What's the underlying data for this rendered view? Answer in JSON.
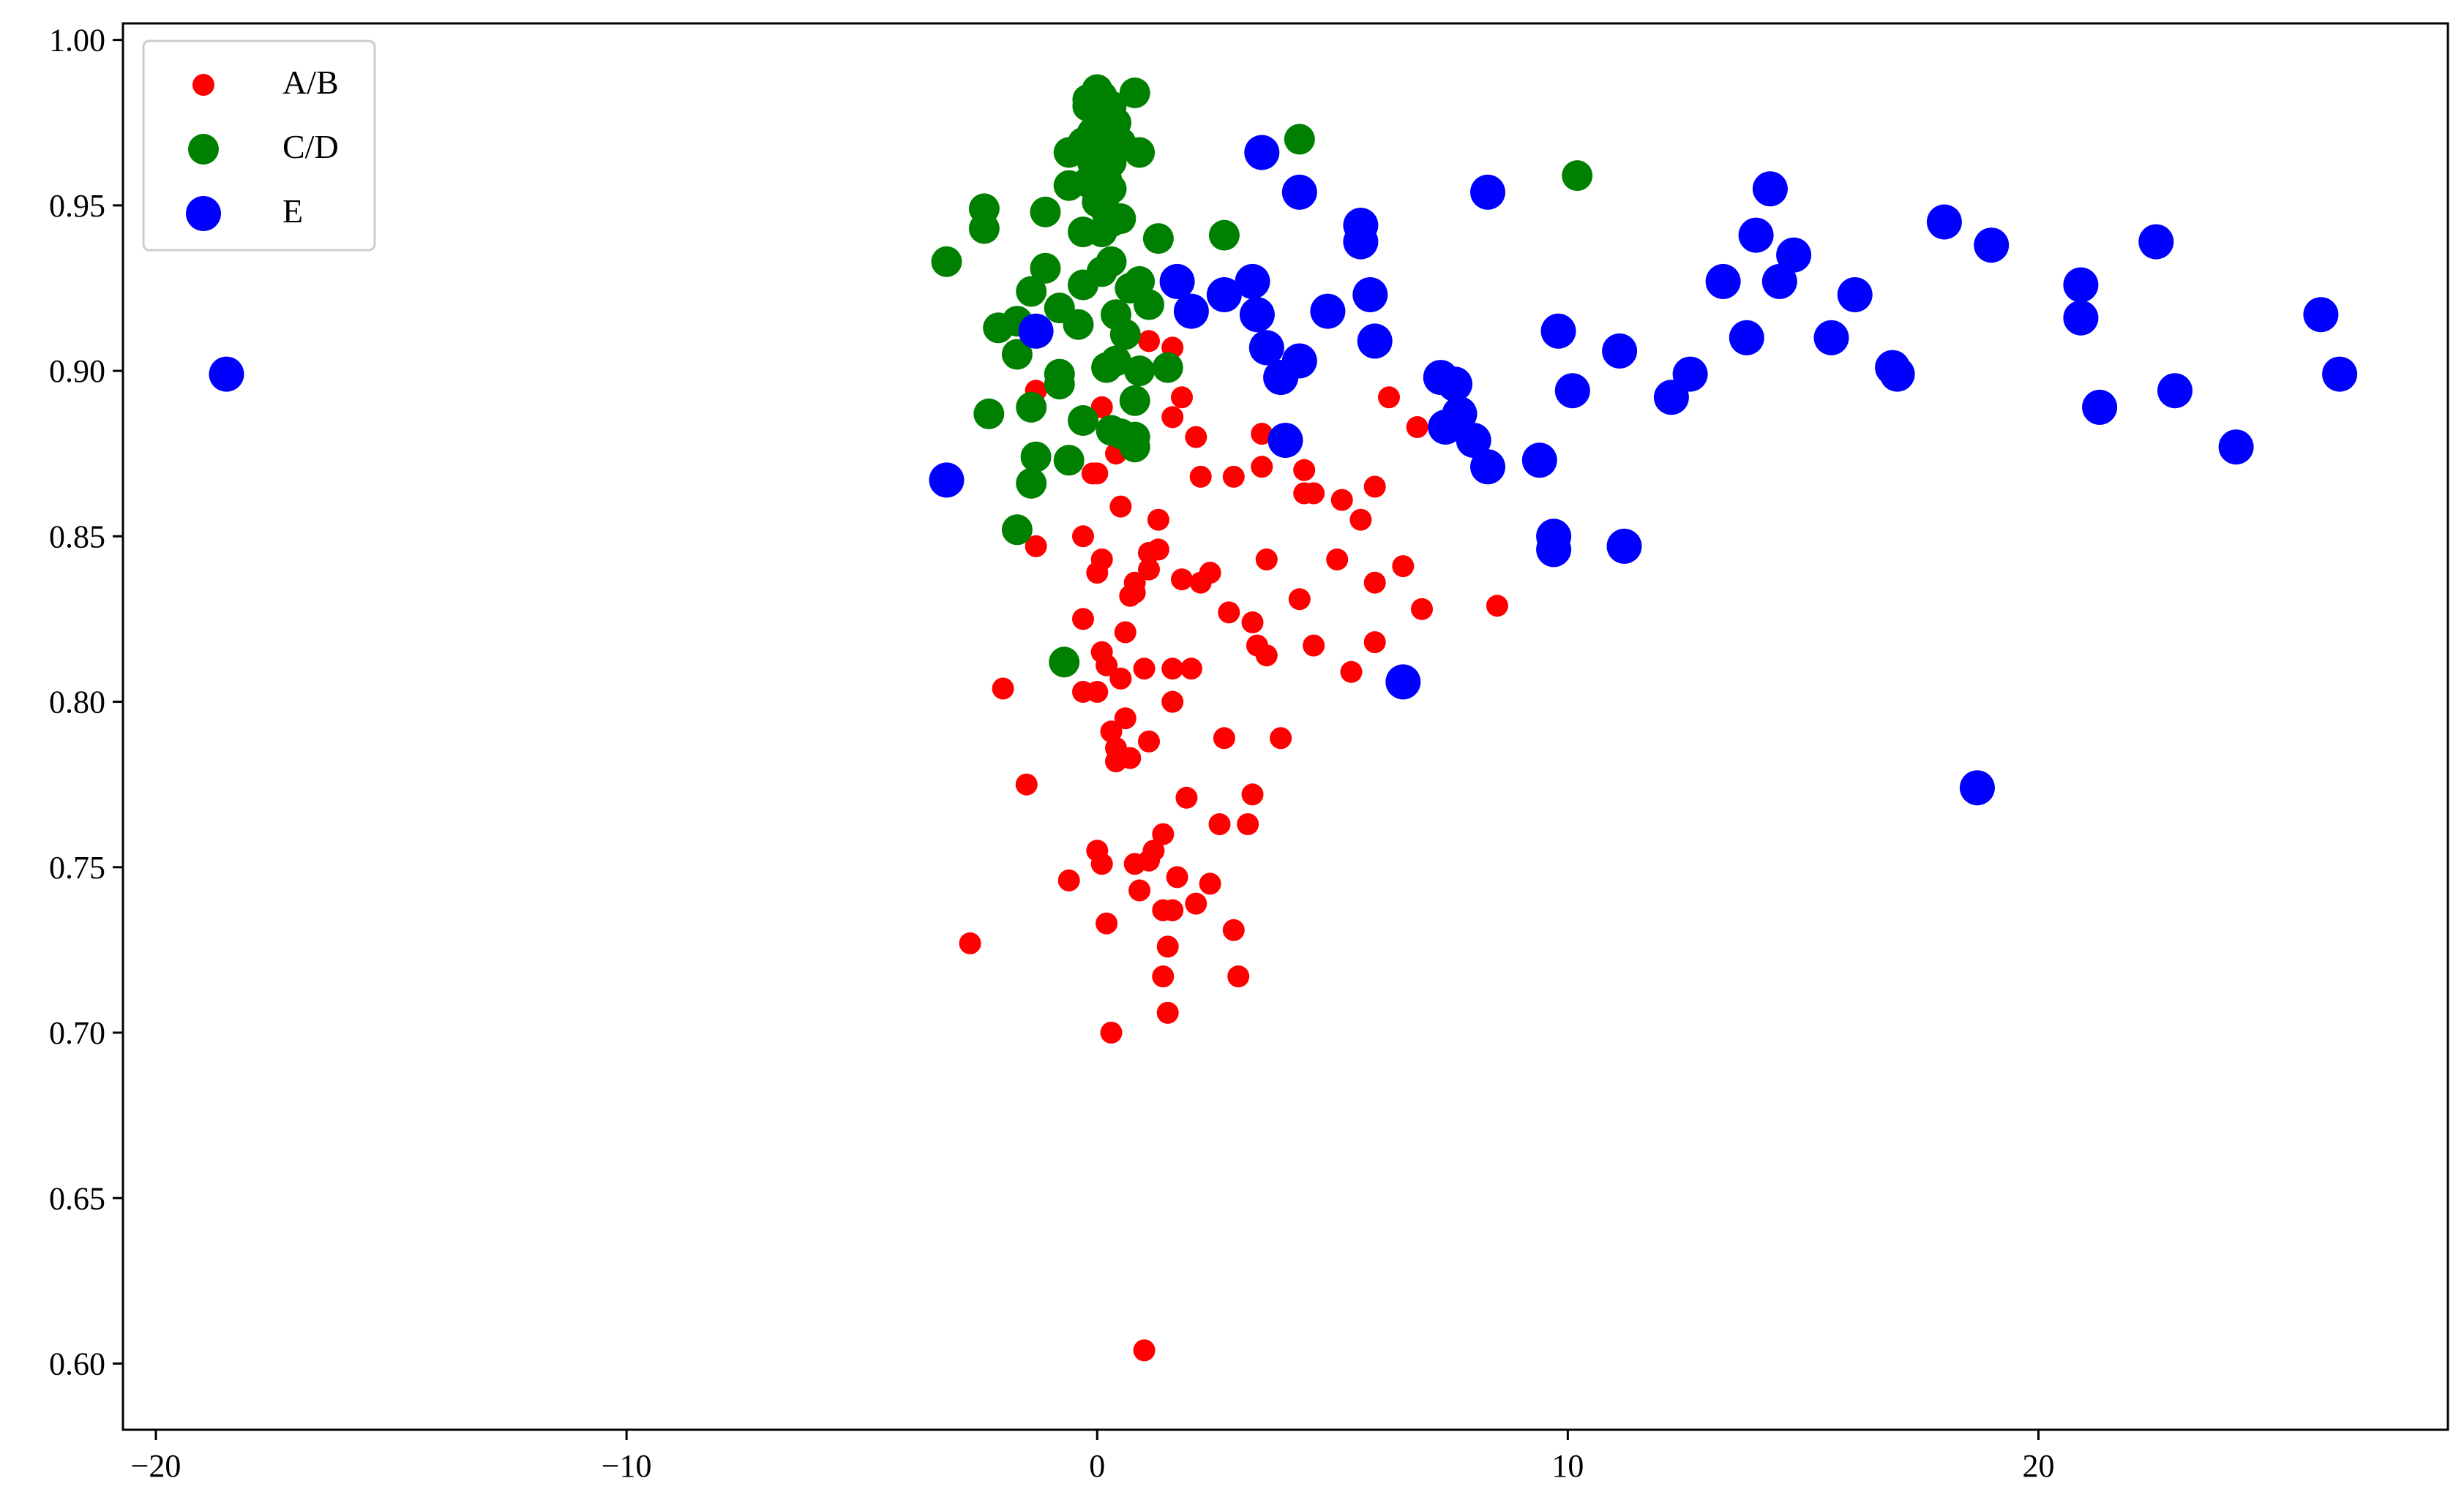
{
  "chart_data": {
    "type": "scatter",
    "title": "",
    "xlabel": "",
    "ylabel": "",
    "xlim": [
      -20.7,
      28.7
    ],
    "ylim": [
      0.58,
      1.005
    ],
    "xticks": [
      -20,
      -10,
      0,
      10,
      20
    ],
    "xtick_labels": [
      "−20",
      "−10",
      "0",
      "10",
      "20"
    ],
    "yticks": [
      0.6,
      0.65,
      0.7,
      0.75,
      0.8,
      0.85,
      0.9,
      0.95,
      1.0
    ],
    "ytick_labels": [
      "0.60",
      "0.65",
      "0.70",
      "0.75",
      "0.80",
      "0.85",
      "0.90",
      "0.95",
      "1.00"
    ],
    "grid": false,
    "legend_position": "upper-left",
    "series": [
      {
        "name": "A/B",
        "color": "#ff0000",
        "marker_size": "small",
        "points": [
          [
            1.0,
            0.604
          ],
          [
            0.3,
            0.7
          ],
          [
            1.5,
            0.706
          ],
          [
            1.4,
            0.717
          ],
          [
            3.0,
            0.717
          ],
          [
            1.5,
            0.726
          ],
          [
            -2.7,
            0.727
          ],
          [
            2.9,
            0.731
          ],
          [
            0.2,
            0.733
          ],
          [
            1.4,
            0.737
          ],
          [
            1.6,
            0.737
          ],
          [
            2.1,
            0.739
          ],
          [
            0.9,
            0.743
          ],
          [
            2.4,
            0.745
          ],
          [
            -0.6,
            0.746
          ],
          [
            1.7,
            0.747
          ],
          [
            0.1,
            0.751
          ],
          [
            0.8,
            0.751
          ],
          [
            1.1,
            0.752
          ],
          [
            1.2,
            0.755
          ],
          [
            0.0,
            0.755
          ],
          [
            1.4,
            0.76
          ],
          [
            2.6,
            0.763
          ],
          [
            3.2,
            0.763
          ],
          [
            1.9,
            0.771
          ],
          [
            3.3,
            0.772
          ],
          [
            -1.5,
            0.775
          ],
          [
            0.4,
            0.782
          ],
          [
            0.7,
            0.783
          ],
          [
            0.4,
            0.786
          ],
          [
            1.1,
            0.788
          ],
          [
            2.7,
            0.789
          ],
          [
            3.9,
            0.789
          ],
          [
            0.3,
            0.791
          ],
          [
            0.6,
            0.795
          ],
          [
            -0.3,
            0.803
          ],
          [
            0.0,
            0.803
          ],
          [
            1.6,
            0.8
          ],
          [
            -2.0,
            0.804
          ],
          [
            0.5,
            0.807
          ],
          [
            1.0,
            0.81
          ],
          [
            1.6,
            0.81
          ],
          [
            2.0,
            0.81
          ],
          [
            5.4,
            0.809
          ],
          [
            0.2,
            0.811
          ],
          [
            0.1,
            0.815
          ],
          [
            3.6,
            0.814
          ],
          [
            3.4,
            0.817
          ],
          [
            4.6,
            0.817
          ],
          [
            5.9,
            0.818
          ],
          [
            0.6,
            0.821
          ],
          [
            -0.3,
            0.825
          ],
          [
            3.3,
            0.824
          ],
          [
            2.8,
            0.827
          ],
          [
            6.9,
            0.828
          ],
          [
            8.5,
            0.829
          ],
          [
            4.3,
            0.831
          ],
          [
            0.7,
            0.832
          ],
          [
            0.8,
            0.833
          ],
          [
            0.8,
            0.836
          ],
          [
            1.8,
            0.837
          ],
          [
            2.2,
            0.836
          ],
          [
            5.9,
            0.836
          ],
          [
            2.4,
            0.839
          ],
          [
            0.0,
            0.839
          ],
          [
            1.1,
            0.84
          ],
          [
            6.5,
            0.841
          ],
          [
            0.1,
            0.843
          ],
          [
            3.6,
            0.843
          ],
          [
            5.1,
            0.843
          ],
          [
            1.1,
            0.845
          ],
          [
            1.3,
            0.846
          ],
          [
            -1.3,
            0.847
          ],
          [
            -0.3,
            0.85
          ],
          [
            1.3,
            0.855
          ],
          [
            5.6,
            0.855
          ],
          [
            0.5,
            0.859
          ],
          [
            5.2,
            0.861
          ],
          [
            4.6,
            0.863
          ],
          [
            4.4,
            0.863
          ],
          [
            5.9,
            0.865
          ],
          [
            2.2,
            0.868
          ],
          [
            2.9,
            0.868
          ],
          [
            -0.1,
            0.869
          ],
          [
            0.0,
            0.869
          ],
          [
            3.5,
            0.871
          ],
          [
            4.4,
            0.87
          ],
          [
            0.4,
            0.875
          ],
          [
            6.2,
            0.892
          ],
          [
            3.5,
            0.881
          ],
          [
            4.0,
            0.881
          ],
          [
            6.8,
            0.883
          ],
          [
            2.1,
            0.88
          ],
          [
            1.6,
            0.886
          ],
          [
            1.8,
            0.892
          ],
          [
            0.1,
            0.889
          ],
          [
            1.1,
            0.909
          ],
          [
            1.6,
            0.907
          ],
          [
            -1.3,
            0.894
          ]
        ]
      },
      {
        "name": "C/D",
        "color": "#008000",
        "marker_size": "medium",
        "points": [
          [
            -0.7,
            0.812
          ],
          [
            -1.7,
            0.852
          ],
          [
            -1.4,
            0.866
          ],
          [
            -1.3,
            0.874
          ],
          [
            -0.6,
            0.873
          ],
          [
            0.8,
            0.877
          ],
          [
            0.8,
            0.88
          ],
          [
            0.5,
            0.881
          ],
          [
            0.3,
            0.882
          ],
          [
            -0.3,
            0.885
          ],
          [
            -2.3,
            0.887
          ],
          [
            -1.4,
            0.889
          ],
          [
            0.8,
            0.891
          ],
          [
            -0.8,
            0.896
          ],
          [
            -0.8,
            0.899
          ],
          [
            0.9,
            0.9
          ],
          [
            1.5,
            0.901
          ],
          [
            0.4,
            0.903
          ],
          [
            0.2,
            0.901
          ],
          [
            -1.7,
            0.905
          ],
          [
            -0.4,
            0.914
          ],
          [
            -2.1,
            0.913
          ],
          [
            -1.7,
            0.915
          ],
          [
            0.6,
            0.911
          ],
          [
            0.4,
            0.917
          ],
          [
            -0.8,
            0.919
          ],
          [
            1.1,
            0.92
          ],
          [
            -0.3,
            0.926
          ],
          [
            0.7,
            0.925
          ],
          [
            0.9,
            0.927
          ],
          [
            -1.4,
            0.924
          ],
          [
            -1.1,
            0.931
          ],
          [
            0.1,
            0.93
          ],
          [
            0.3,
            0.933
          ],
          [
            -3.2,
            0.933
          ],
          [
            2.7,
            0.941
          ],
          [
            1.3,
            0.94
          ],
          [
            -0.3,
            0.942
          ],
          [
            -2.4,
            0.943
          ],
          [
            0.1,
            0.942
          ],
          [
            0.3,
            0.945
          ],
          [
            0.5,
            0.946
          ],
          [
            -2.4,
            0.949
          ],
          [
            -1.1,
            0.948
          ],
          [
            0.2,
            0.948
          ],
          [
            0.0,
            0.951
          ],
          [
            -0.6,
            0.956
          ],
          [
            0.3,
            0.955
          ],
          [
            -0.2,
            0.957
          ],
          [
            0.2,
            0.958
          ],
          [
            10.2,
            0.959
          ],
          [
            -0.1,
            0.963
          ],
          [
            0.3,
            0.963
          ],
          [
            -0.6,
            0.966
          ],
          [
            0.9,
            0.966
          ],
          [
            0.1,
            0.968
          ],
          [
            -0.3,
            0.969
          ],
          [
            0.5,
            0.969
          ],
          [
            4.3,
            0.97
          ],
          [
            -0.1,
            0.972
          ],
          [
            0.2,
            0.973
          ],
          [
            0.4,
            0.975
          ],
          [
            0.0,
            0.977
          ],
          [
            -0.2,
            0.98
          ],
          [
            0.3,
            0.98
          ],
          [
            -0.2,
            0.982
          ],
          [
            0.1,
            0.983
          ],
          [
            0.8,
            0.984
          ],
          [
            0.0,
            0.985
          ]
        ]
      },
      {
        "name": "E",
        "color": "#0000ff",
        "marker_size": "large",
        "points": [
          [
            -18.5,
            0.899
          ],
          [
            -3.2,
            0.867
          ],
          [
            -1.3,
            0.912
          ],
          [
            3.5,
            0.966
          ],
          [
            4.3,
            0.954
          ],
          [
            8.3,
            0.954
          ],
          [
            14.3,
            0.955
          ],
          [
            5.6,
            0.944
          ],
          [
            18.0,
            0.945
          ],
          [
            5.6,
            0.939
          ],
          [
            14.0,
            0.941
          ],
          [
            19.0,
            0.938
          ],
          [
            22.5,
            0.939
          ],
          [
            14.8,
            0.935
          ],
          [
            1.7,
            0.927
          ],
          [
            3.3,
            0.927
          ],
          [
            2.7,
            0.923
          ],
          [
            5.8,
            0.923
          ],
          [
            13.3,
            0.927
          ],
          [
            14.5,
            0.927
          ],
          [
            16.1,
            0.923
          ],
          [
            20.9,
            0.926
          ],
          [
            2.0,
            0.918
          ],
          [
            3.4,
            0.917
          ],
          [
            4.9,
            0.918
          ],
          [
            20.9,
            0.916
          ],
          [
            26.0,
            0.917
          ],
          [
            9.8,
            0.912
          ],
          [
            13.8,
            0.91
          ],
          [
            15.6,
            0.91
          ],
          [
            3.6,
            0.907
          ],
          [
            5.9,
            0.909
          ],
          [
            4.3,
            0.903
          ],
          [
            11.1,
            0.906
          ],
          [
            16.9,
            0.901
          ],
          [
            17.0,
            0.899
          ],
          [
            12.6,
            0.899
          ],
          [
            26.4,
            0.899
          ],
          [
            3.9,
            0.898
          ],
          [
            7.3,
            0.898
          ],
          [
            7.6,
            0.896
          ],
          [
            10.1,
            0.894
          ],
          [
            22.9,
            0.894
          ],
          [
            12.2,
            0.892
          ],
          [
            21.3,
            0.889
          ],
          [
            7.7,
            0.887
          ],
          [
            7.4,
            0.883
          ],
          [
            8.0,
            0.879
          ],
          [
            4.0,
            0.879
          ],
          [
            24.2,
            0.877
          ],
          [
            9.4,
            0.873
          ],
          [
            8.3,
            0.871
          ],
          [
            9.7,
            0.85
          ],
          [
            9.7,
            0.846
          ],
          [
            11.2,
            0.847
          ],
          [
            6.5,
            0.806
          ],
          [
            18.7,
            0.774
          ]
        ]
      }
    ]
  }
}
